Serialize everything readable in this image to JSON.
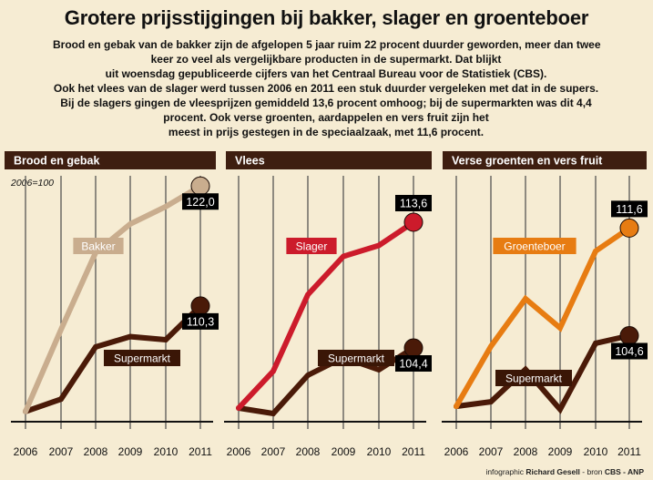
{
  "title": "Grotere prijsstijgingen bij bakker, slager en groenteboer",
  "intro": [
    "Brood en gebak van de bakker zijn de afgelopen 5 jaar ruim 22 procent duurder geworden, meer dan twee",
    "keer zo veel als vergelijkbare producten in de supermarkt. Dat blijkt",
    "uit woensdag gepubliceerde cijfers van het Centraal Bureau voor de Statistiek (CBS).",
    "Ook het vlees van de slager werd tussen 2006 en 2011 een stuk duurder vergeleken met dat in de supers.",
    "Bij de slagers gingen de vleesprijzen gemiddeld 13,6 procent omhoog; bij de supermarkten was dit 4,4",
    "procent. Ook verse groenten, aardappelen en vers fruit zijn het",
    "meest in prijs gestegen in de speciaalzaak, met 11,6 procent."
  ],
  "colors": {
    "background": "#f6ecd3",
    "header_bar": "#3e1e10",
    "grid": "#4a4a4a",
    "supermarkt": "#4a1a08",
    "bakker": "#c9ad8e",
    "slager": "#cc1b2b",
    "groenteboer": "#e77c12"
  },
  "chart_data": [
    {
      "type": "line",
      "title": "Brood en gebak",
      "ylabel": "2006=100",
      "x": [
        "2006",
        "2007",
        "2008",
        "2009",
        "2010",
        "2011"
      ],
      "ylim": [
        99,
        123
      ],
      "series": [
        {
          "name": "Bakker",
          "color_key": "bakker",
          "values": [
            100.0,
            108.0,
            115.5,
            118.3,
            120.0,
            122.0
          ],
          "end_label": "122,0",
          "end_label_pos": "below"
        },
        {
          "name": "Supermarkt",
          "color_key": "supermarkt",
          "values": [
            100.0,
            101.2,
            106.3,
            107.3,
            107.0,
            110.3
          ],
          "end_label": "110,3",
          "end_label_pos": "below"
        }
      ]
    },
    {
      "type": "line",
      "title": "Vlees",
      "ylabel": "",
      "x": [
        "2006",
        "2007",
        "2008",
        "2009",
        "2010",
        "2011"
      ],
      "ylim": [
        99,
        117
      ],
      "series": [
        {
          "name": "Slager",
          "color_key": "slager",
          "values": [
            100.0,
            102.7,
            108.3,
            111.1,
            111.9,
            113.6
          ],
          "end_label": "113,6",
          "end_label_pos": "above"
        },
        {
          "name": "Supermarkt",
          "color_key": "supermarkt",
          "values": [
            100.0,
            99.6,
            102.4,
            103.7,
            102.8,
            104.4
          ],
          "end_label": "104,4",
          "end_label_pos": "below"
        }
      ]
    },
    {
      "type": "line",
      "title": "Verse groenten en vers fruit",
      "ylabel": "",
      "x": [
        "2006",
        "2007",
        "2008",
        "2009",
        "2010",
        "2011"
      ],
      "ylim": [
        99,
        115
      ],
      "series": [
        {
          "name": "Groenteboer",
          "color_key": "groenteboer",
          "values": [
            100.0,
            103.9,
            107.0,
            105.1,
            110.1,
            111.6
          ],
          "end_label": "111,6",
          "end_label_pos": "above"
        },
        {
          "name": "Supermarkt",
          "color_key": "supermarkt",
          "values": [
            100.0,
            100.3,
            102.4,
            99.8,
            104.1,
            104.6
          ],
          "end_label": "104,6",
          "end_label_pos": "below"
        }
      ]
    }
  ],
  "credit": {
    "prefix": "infographic ",
    "author": "Richard Gesell",
    "middle": " - bron ",
    "source": "CBS - ANP"
  }
}
